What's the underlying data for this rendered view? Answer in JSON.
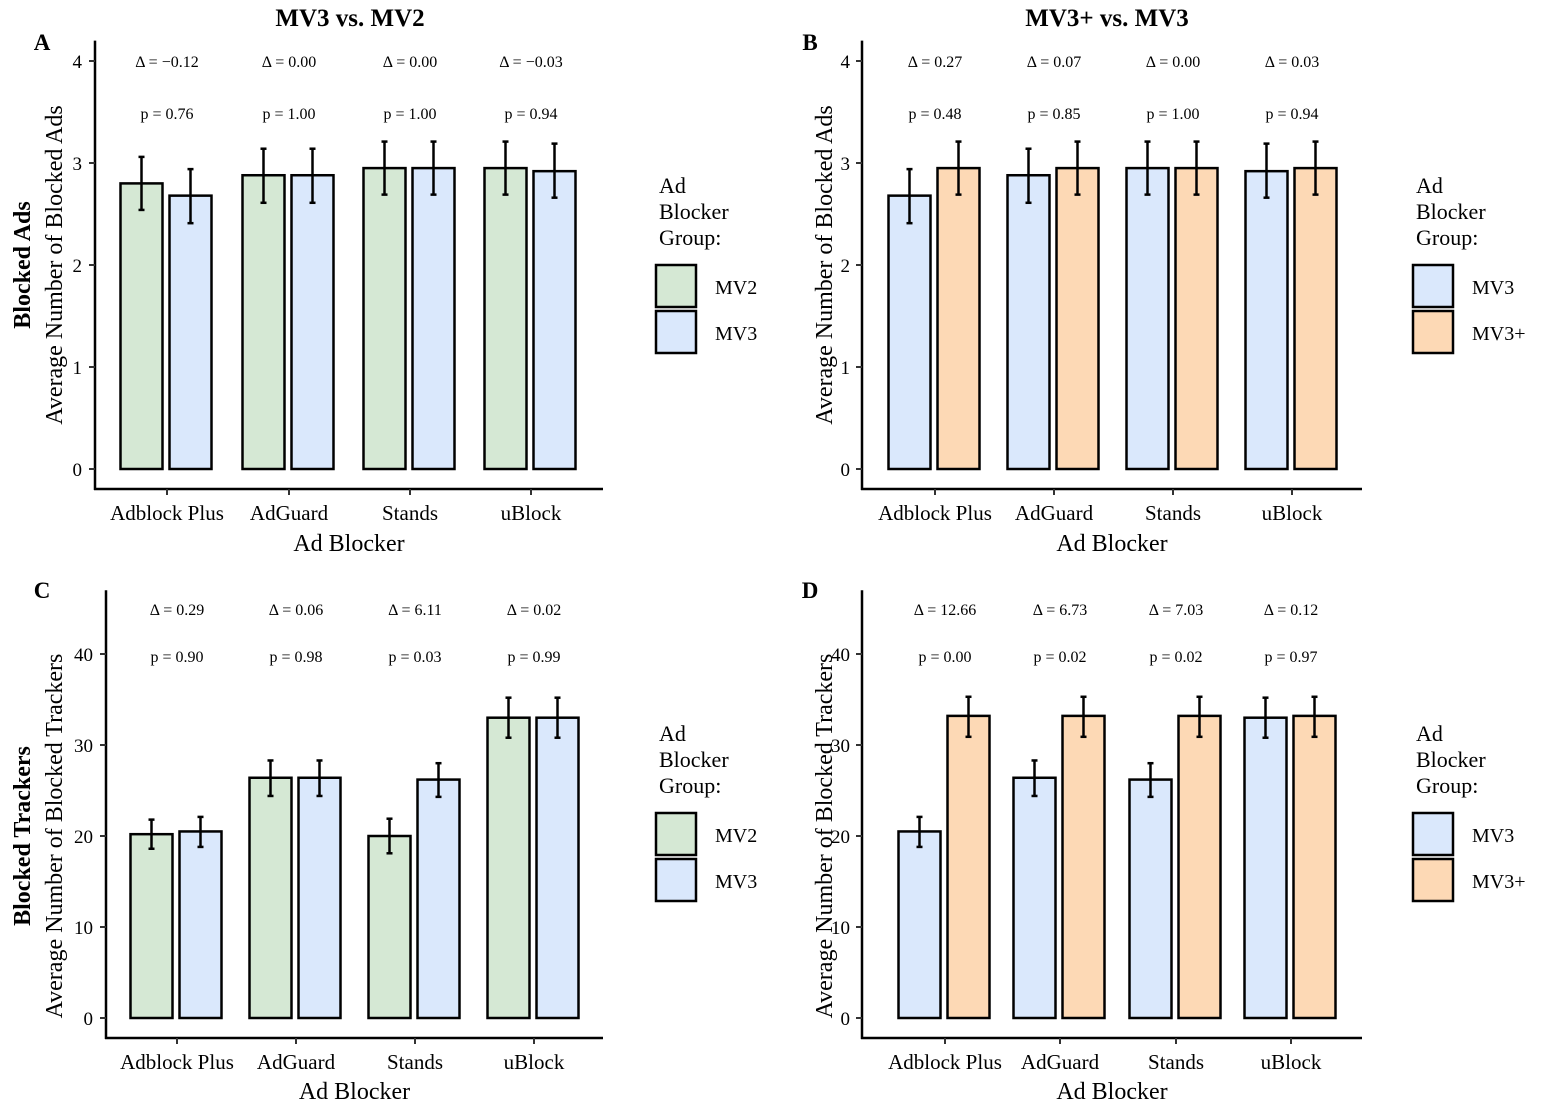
{
  "chart_data": [
    {
      "id": "A",
      "type": "bar",
      "column_title": "MV3 vs. MV2",
      "row_title": "Blocked Ads",
      "panel_label": "A",
      "xlabel": "Ad Blocker",
      "ylabel": "Average Number of Blocked Ads",
      "ylim": [
        0,
        4.2
      ],
      "yticks": [
        0,
        1,
        2,
        3,
        4
      ],
      "categories": [
        "Adblock Plus",
        "AdGuard",
        "Stands",
        "uBlock"
      ],
      "legend": {
        "title": [
          "Ad",
          "Blocker",
          "Group:"
        ],
        "placement": "right"
      },
      "series": [
        {
          "name": "MV2",
          "color": "#D5E8D4",
          "values": [
            2.8,
            2.88,
            2.95,
            2.95
          ],
          "err_low": [
            2.54,
            2.61,
            2.69,
            2.69
          ],
          "err_high": [
            3.06,
            3.14,
            3.21,
            3.21
          ]
        },
        {
          "name": "MV3",
          "color": "#DAE8FC",
          "values": [
            2.68,
            2.88,
            2.95,
            2.92
          ],
          "err_low": [
            2.41,
            2.61,
            2.69,
            2.66
          ],
          "err_high": [
            2.94,
            3.14,
            3.21,
            3.19
          ]
        }
      ],
      "annotations": {
        "delta": [
          "Δ = −0.12",
          "Δ = 0.00",
          "Δ = 0.00",
          "Δ = −0.03"
        ],
        "p": [
          "p = 0.76",
          "p = 1.00",
          "p = 1.00",
          "p = 0.94"
        ]
      }
    },
    {
      "id": "B",
      "type": "bar",
      "column_title": "MV3+ vs. MV3",
      "row_title": "",
      "panel_label": "B",
      "xlabel": "Ad Blocker",
      "ylabel": "Average Number of Blocked Ads",
      "ylim": [
        0,
        4.2
      ],
      "yticks": [
        0,
        1,
        2,
        3,
        4
      ],
      "categories": [
        "Adblock Plus",
        "AdGuard",
        "Stands",
        "uBlock"
      ],
      "legend": {
        "title": [
          "Ad",
          "Blocker",
          "Group:"
        ],
        "placement": "right"
      },
      "series": [
        {
          "name": "MV3",
          "color": "#DAE8FC",
          "values": [
            2.68,
            2.88,
            2.95,
            2.92
          ],
          "err_low": [
            2.41,
            2.61,
            2.69,
            2.66
          ],
          "err_high": [
            2.94,
            3.14,
            3.21,
            3.19
          ]
        },
        {
          "name": "MV3+",
          "color": "#FDD9B5",
          "values": [
            2.95,
            2.95,
            2.95,
            2.95
          ],
          "err_low": [
            2.69,
            2.69,
            2.69,
            2.69
          ],
          "err_high": [
            3.21,
            3.21,
            3.21,
            3.21
          ]
        }
      ],
      "annotations": {
        "delta": [
          "Δ = 0.27",
          "Δ = 0.07",
          "Δ = 0.00",
          "Δ = 0.03"
        ],
        "p": [
          "p = 0.48",
          "p = 0.85",
          "p = 1.00",
          "p = 0.94"
        ]
      }
    },
    {
      "id": "C",
      "type": "bar",
      "column_title": "",
      "row_title": "Blocked Trackers",
      "panel_label": "C",
      "xlabel": "Ad Blocker",
      "ylabel": "Average Number of Blocked Trackers",
      "ylim": [
        0,
        47
      ],
      "yticks": [
        0,
        10,
        20,
        30,
        40
      ],
      "categories": [
        "Adblock Plus",
        "AdGuard",
        "Stands",
        "uBlock"
      ],
      "legend": {
        "title": [
          "Ad",
          "Blocker",
          "Group:"
        ],
        "placement": "right"
      },
      "series": [
        {
          "name": "MV2",
          "color": "#D5E8D4",
          "values": [
            20.2,
            26.4,
            20.0,
            33.0
          ],
          "err_low": [
            18.6,
            24.4,
            18.1,
            30.8
          ],
          "err_high": [
            21.8,
            28.3,
            21.9,
            35.2
          ]
        },
        {
          "name": "MV3",
          "color": "#DAE8FC",
          "values": [
            20.5,
            26.4,
            26.2,
            33.0
          ],
          "err_low": [
            18.8,
            24.4,
            24.3,
            30.8
          ],
          "err_high": [
            22.1,
            28.3,
            28.0,
            35.2
          ]
        }
      ],
      "annotations": {
        "delta": [
          "Δ = 0.29",
          "Δ = 0.06",
          "Δ = 6.11",
          "Δ = 0.02"
        ],
        "p": [
          "p = 0.90",
          "p = 0.98",
          "p = 0.03",
          "p = 0.99"
        ]
      }
    },
    {
      "id": "D",
      "type": "bar",
      "column_title": "",
      "row_title": "",
      "panel_label": "D",
      "xlabel": "Ad Blocker",
      "ylabel": "Average Number of Blocked Trackers",
      "ylim": [
        0,
        47
      ],
      "yticks": [
        0,
        10,
        20,
        30,
        40
      ],
      "categories": [
        "Adblock Plus",
        "AdGuard",
        "Stands",
        "uBlock"
      ],
      "legend": {
        "title": [
          "Ad",
          "Blocker",
          "Group:"
        ],
        "placement": "right"
      },
      "series": [
        {
          "name": "MV3",
          "color": "#DAE8FC",
          "values": [
            20.5,
            26.4,
            26.2,
            33.0
          ],
          "err_low": [
            18.8,
            24.4,
            24.3,
            30.8
          ],
          "err_high": [
            22.1,
            28.3,
            28.0,
            35.2
          ]
        },
        {
          "name": "MV3+",
          "color": "#FDD9B5",
          "values": [
            33.2,
            33.2,
            33.2,
            33.2
          ],
          "err_low": [
            30.9,
            30.9,
            30.9,
            30.9
          ],
          "err_high": [
            35.3,
            35.3,
            35.3,
            35.3
          ]
        }
      ],
      "annotations": {
        "delta": [
          "Δ = 12.66",
          "Δ = 6.73",
          "Δ = 7.03",
          "Δ = 0.12"
        ],
        "p": [
          "p = 0.00",
          "p = 0.02",
          "p = 0.02",
          "p = 0.97"
        ]
      }
    }
  ]
}
